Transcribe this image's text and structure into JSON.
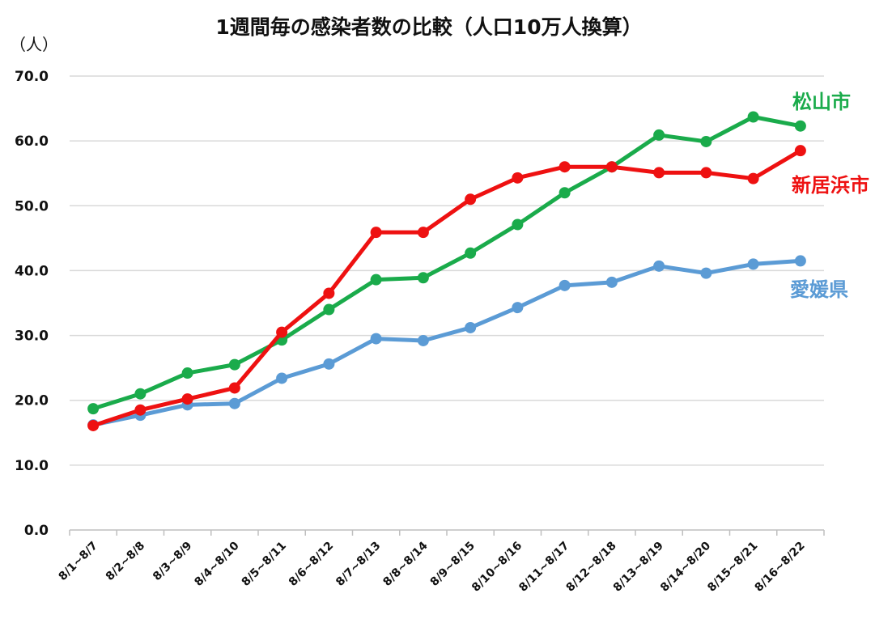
{
  "chart_data": {
    "type": "line",
    "title": "1週間毎の感染者数の比較（人口10万人換算）",
    "ylabel": "（人）",
    "ylim": [
      0,
      70
    ],
    "yticks": [
      "0.0",
      "10.0",
      "20.0",
      "30.0",
      "40.0",
      "50.0",
      "60.0",
      "70.0"
    ],
    "grid": true,
    "categories": [
      "8/1~8/7",
      "8/2~8/8",
      "8/3~8/9",
      "8/4~8/10",
      "8/5~8/11",
      "8/6~8/12",
      "8/7~8/13",
      "8/8~8/14",
      "8/9~8/15",
      "8/10~8/16",
      "8/11~8/17",
      "8/12~8/18",
      "8/13~8/19",
      "8/14~8/20",
      "8/15~8/21",
      "8/16~8/22"
    ],
    "series": [
      {
        "name": "愛媛県",
        "color": "#5b9bd5",
        "values": [
          16.2,
          17.7,
          19.3,
          19.5,
          23.4,
          25.6,
          29.5,
          29.2,
          31.2,
          34.3,
          37.7,
          38.2,
          40.7,
          39.6,
          41.0,
          41.5
        ]
      },
      {
        "name": "松山市",
        "color": "#1aab4b",
        "values": [
          18.7,
          21.0,
          24.2,
          25.5,
          29.3,
          34.0,
          38.6,
          38.9,
          42.7,
          47.1,
          52.0,
          56.0,
          60.9,
          59.9,
          63.7,
          62.3
        ]
      },
      {
        "name": "新居浜市",
        "color": "#ee1111",
        "values": [
          16.1,
          18.5,
          20.2,
          21.9,
          30.5,
          36.5,
          45.9,
          45.9,
          51.0,
          54.3,
          56.0,
          56.0,
          55.1,
          55.1,
          54.2,
          58.5
        ]
      }
    ]
  }
}
